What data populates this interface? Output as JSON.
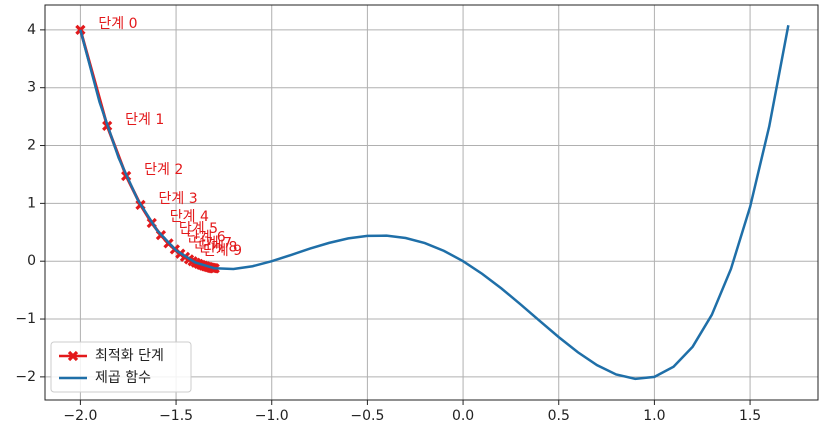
{
  "chart_data": {
    "type": "line",
    "xlim": [
      -2.185,
      1.855
    ],
    "ylim": [
      -2.4,
      4.43
    ],
    "xticks": [
      {
        "value": -2.0,
        "label": "−2.0"
      },
      {
        "value": -1.5,
        "label": "−1.5"
      },
      {
        "value": -1.0,
        "label": "−1.0"
      },
      {
        "value": -0.5,
        "label": "−0.5"
      },
      {
        "value": 0,
        "label": "0.0"
      },
      0.5,
      {
        "value": 1.0,
        "label": "1.0"
      },
      1.5
    ],
    "yticks": [
      {
        "value": -2,
        "label": "−2"
      },
      {
        "value": -1,
        "label": "−1"
      },
      0,
      1,
      2,
      3,
      4
    ],
    "grid": true,
    "legend": "lower left",
    "annotations": [
      "단계 0",
      "단계 1",
      "단계 2",
      "단계 3",
      "단계 4",
      "단계 5",
      "단계 6",
      "단계 7",
      "단계 8",
      "단계 9"
    ],
    "series": [
      {
        "name": "최적화 단계",
        "color": "#e3191b",
        "marker": "X",
        "x": [
          -2,
          -1.86,
          -1.7608,
          -1.6859,
          -1.6269,
          -1.5791,
          -1.5396,
          -1.5063,
          -1.4779,
          -1.4534,
          -1.4321,
          -1.4134,
          -1.3969,
          -1.3823,
          -1.3693,
          -1.3577,
          -1.3473,
          -1.338,
          -1.3296,
          -1.322,
          -1.3151,
          -1.3089,
          -1.3032,
          -1.298
        ],
        "values": [
          4,
          2.34,
          1.474,
          0.974,
          0.66,
          0.451,
          0.308,
          0.205,
          0.13,
          0.074,
          0.032,
          -0.001,
          -0.027,
          -0.047,
          -0.063,
          -0.076,
          -0.087,
          -0.096,
          -0.103,
          -0.11,
          -0.115,
          -0.119,
          -0.122,
          -0.125
        ]
      },
      {
        "name": "제곱 함수",
        "color": "#1f6fa8",
        "x": [
          -2,
          -1.9,
          -1.8,
          -1.7,
          -1.6,
          -1.5,
          -1.4,
          -1.3,
          -1.2,
          -1.1,
          -1.0,
          -0.9,
          -0.8,
          -0.7,
          -0.6,
          -0.5,
          -0.4,
          -0.3,
          -0.2,
          -0.1,
          0,
          0.1,
          0.2,
          0.3,
          0.4,
          0.5,
          0.6,
          0.7,
          0.8,
          0.9,
          1.0,
          1.1,
          1.2,
          1.3,
          1.4,
          1.5,
          1.6,
          1.7
        ],
        "values": [
          4,
          2.753,
          1.786,
          1.059,
          0.538,
          0.1875,
          -0.022,
          -0.121,
          -0.134,
          -0.087,
          0,
          0.107,
          0.218,
          0.317,
          0.394,
          0.4375,
          0.442,
          0.401,
          0.314,
          0.179,
          0,
          -0.219,
          -0.47,
          -0.745,
          -1.03,
          -1.3125,
          -1.574,
          -1.797,
          -1.958,
          -2.035,
          -2,
          -1.825,
          -1.478,
          -0.927,
          -0.134,
          0.9375,
          2.33,
          4.08
        ]
      }
    ]
  }
}
